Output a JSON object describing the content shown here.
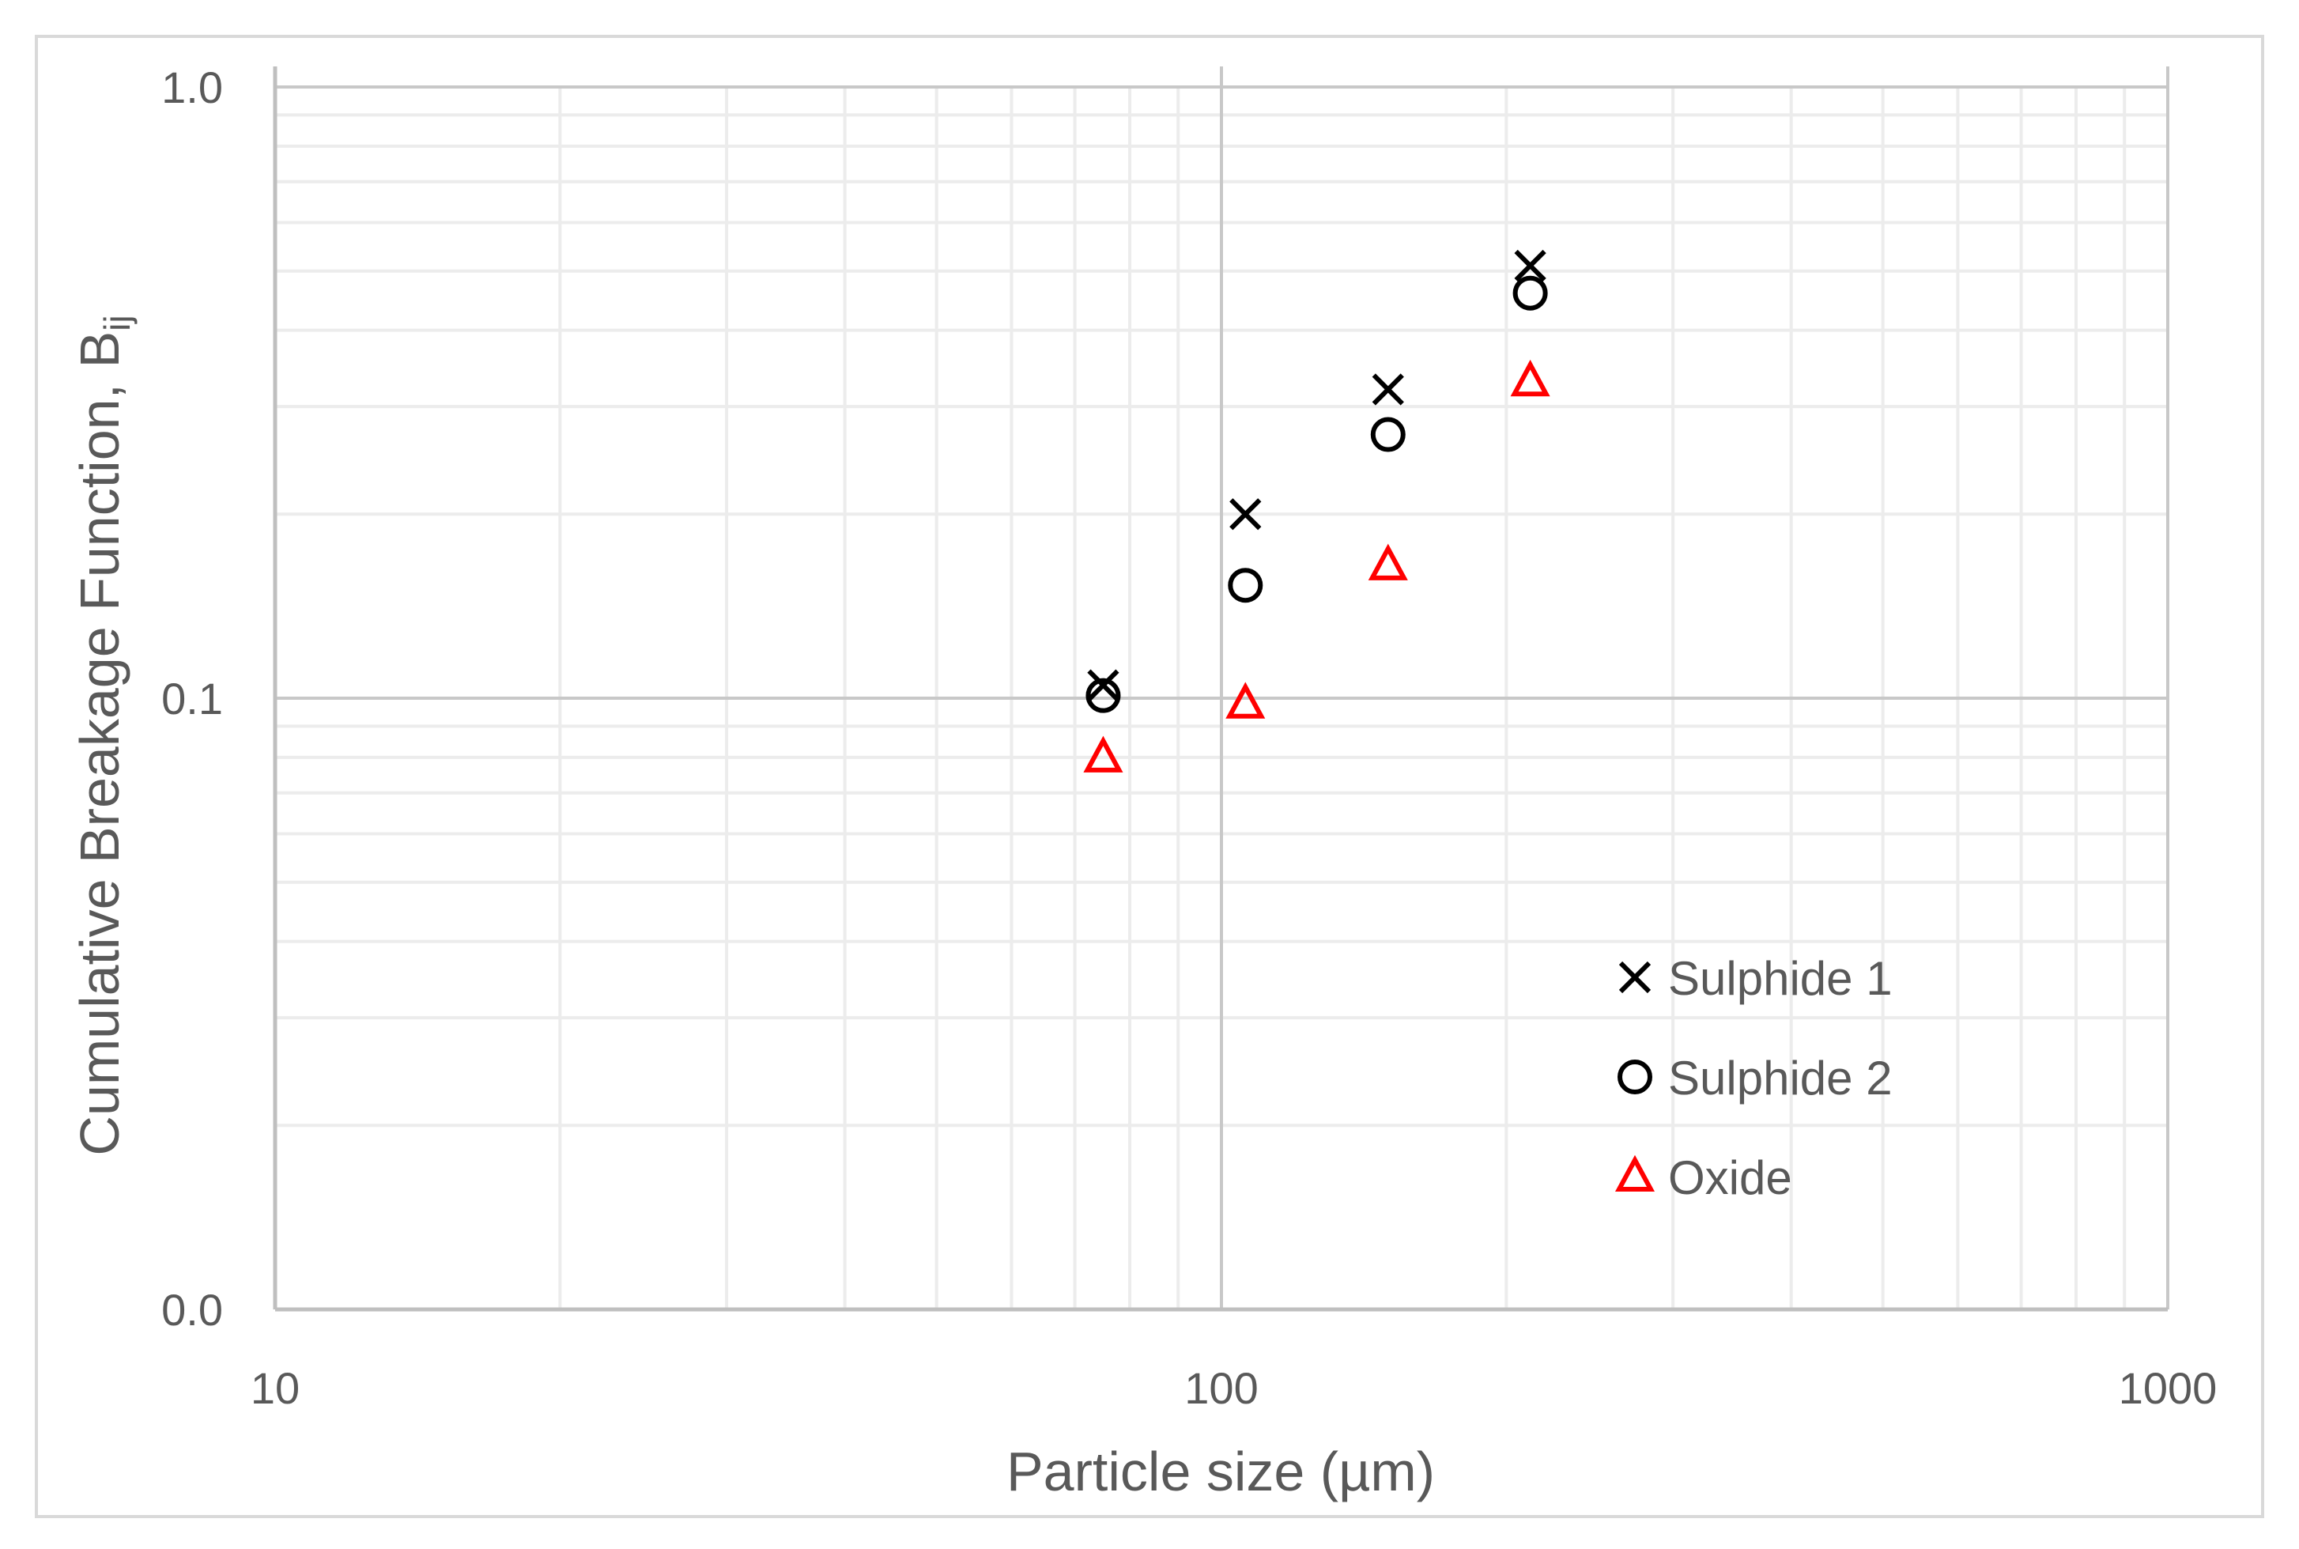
{
  "chart_data": {
    "type": "scatter",
    "title": "",
    "xlabel": "Particle size (µm)",
    "ylabel": "Cumulative Breakage Function, B",
    "ylabel_subscript": "ij",
    "x_scale": "log",
    "y_scale": "log",
    "xlim": [
      10,
      1000
    ],
    "ylim": [
      0.01,
      1
    ],
    "x_ticks": [
      {
        "value": 10,
        "label": "10"
      },
      {
        "value": 100,
        "label": "100"
      },
      {
        "value": 1000,
        "label": "1000"
      }
    ],
    "y_ticks": [
      {
        "value": 0.01,
        "label": "0.0"
      },
      {
        "value": 0.1,
        "label": "0.1"
      },
      {
        "value": 1,
        "label": "1.0"
      }
    ],
    "grid": true,
    "legend_position": "bottom-right",
    "series": [
      {
        "name": "Sulphide 1",
        "marker": "cross",
        "color": "#000000",
        "points": [
          {
            "x": 75,
            "y": 0.105
          },
          {
            "x": 106,
            "y": 0.2
          },
          {
            "x": 150,
            "y": 0.32
          },
          {
            "x": 212,
            "y": 0.51
          }
        ]
      },
      {
        "name": "Sulphide 2",
        "marker": "circle",
        "color": "#000000",
        "points": [
          {
            "x": 75,
            "y": 0.101
          },
          {
            "x": 106,
            "y": 0.153
          },
          {
            "x": 150,
            "y": 0.27
          },
          {
            "x": 212,
            "y": 0.46
          }
        ]
      },
      {
        "name": "Oxide",
        "marker": "triangle",
        "color": "#ff0000",
        "points": [
          {
            "x": 75,
            "y": 0.08
          },
          {
            "x": 106,
            "y": 0.098
          },
          {
            "x": 150,
            "y": 0.165
          },
          {
            "x": 212,
            "y": 0.33
          }
        ]
      }
    ]
  }
}
